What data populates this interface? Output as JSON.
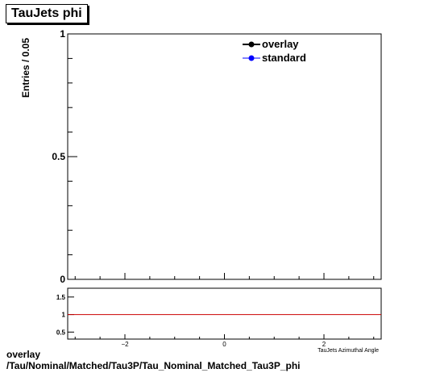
{
  "title": "TauJets phi",
  "footer": {
    "line1": "overlay",
    "line2": "/Tau/Nominal/Matched/Tau3P/Tau_Nominal_Matched_Tau3P_phi"
  },
  "chart_data": [
    {
      "type": "line",
      "title": "TauJets phi",
      "ylabel": "Entries / 0.05",
      "xlabel": "TauJets Azimuthal Angle",
      "xlim": [
        -3.15,
        3.15
      ],
      "ylim": [
        0,
        1
      ],
      "y_ticks": [
        {
          "value": 0,
          "label": "0"
        },
        {
          "value": 0.5,
          "label": "0.5"
        },
        {
          "value": 1,
          "label": "1"
        }
      ],
      "series": [
        {
          "name": "overlay",
          "color": "#000000",
          "values": []
        },
        {
          "name": "standard",
          "color": "#0000ff",
          "values": []
        }
      ],
      "legend": "top-right",
      "grid": false
    },
    {
      "type": "line",
      "title": "",
      "xlim": [
        -3.15,
        3.15
      ],
      "ylim": [
        0.3,
        1.75
      ],
      "x_ticks": [
        {
          "value": -2,
          "label": "−2"
        },
        {
          "value": 0,
          "label": "0"
        },
        {
          "value": 2,
          "label": "2"
        }
      ],
      "y_ticks": [
        {
          "value": 0.5,
          "label": "0.5"
        },
        {
          "value": 1,
          "label": "1"
        },
        {
          "value": 1.5,
          "label": "1.5"
        }
      ],
      "reference_line": {
        "y": 1,
        "color": "#cc0000"
      },
      "grid": false
    }
  ]
}
